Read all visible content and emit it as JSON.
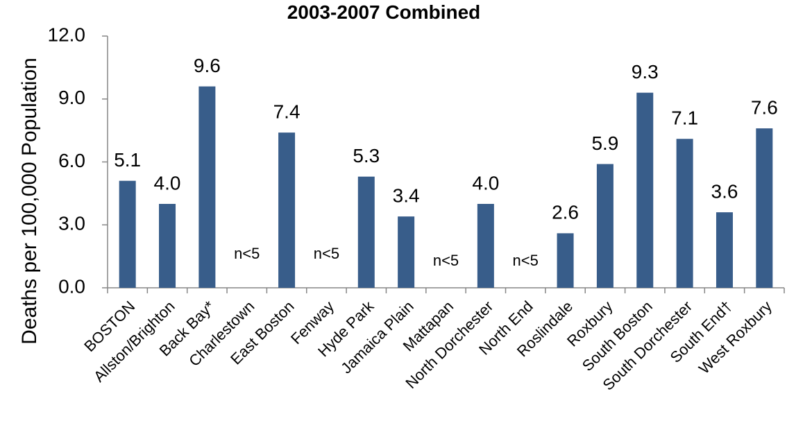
{
  "chart_data": {
    "type": "bar",
    "title": "2003-2007 Combined",
    "y_label": "Deaths per 100,000 Population",
    "categories": [
      "BOSTON",
      "Allston/Brighton",
      "Back Bay*",
      "Charlestown",
      "East Boston",
      "Fenway",
      "Hyde Park",
      "Jamaica Plain",
      "Mattapan",
      "North Dorchester",
      "North End",
      "Roslindale",
      "Roxbury",
      "South Boston",
      "South Dorchester",
      "South End†",
      "West Roxbury"
    ],
    "values": [
      5.1,
      4.0,
      9.6,
      null,
      7.4,
      null,
      5.3,
      3.4,
      null,
      4.0,
      null,
      2.6,
      5.9,
      9.3,
      7.1,
      3.6,
      7.6
    ],
    "value_labels": [
      "5.1",
      "4.0",
      "9.6",
      "n<5",
      "7.4",
      "n<5",
      "5.3",
      "3.4",
      "n<5",
      "4.0",
      "n<5",
      "2.6",
      "5.9",
      "9.3",
      "7.1",
      "3.6",
      "7.6"
    ],
    "color": "#385d8a",
    "ylim": [
      0,
      12
    ],
    "yticks": [
      {
        "value": 0,
        "label": "0.0"
      },
      {
        "value": 3,
        "label": "3.0"
      },
      {
        "value": 6,
        "label": "6.0"
      },
      {
        "value": 9,
        "label": "9.0"
      },
      {
        "value": 12,
        "label": "12.0"
      }
    ],
    "grid": false
  }
}
